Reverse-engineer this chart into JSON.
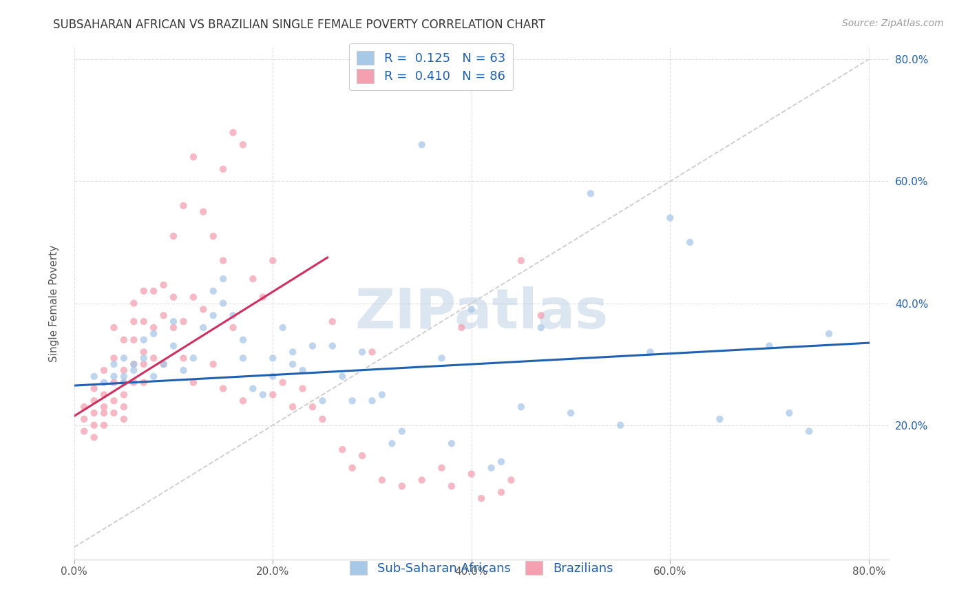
{
  "title": "SUBSAHARAN AFRICAN VS BRAZILIAN SINGLE FEMALE POVERTY CORRELATION CHART",
  "source": "Source: ZipAtlas.com",
  "ylabel": "Single Female Poverty",
  "watermark": "ZIPatlas",
  "blue_R": "0.125",
  "blue_N": 63,
  "pink_R": "0.410",
  "pink_N": 86,
  "legend_label_blue": "Sub-Saharan Africans",
  "legend_label_pink": "Brazilians",
  "blue_color": "#a8c8e8",
  "pink_color": "#f4a0b0",
  "blue_line_color": "#2060b0",
  "pink_line_color": "#d03060",
  "diagonal_color": "#cccccc",
  "xlim": [
    0.0,
    0.82
  ],
  "ylim": [
    -0.02,
    0.82
  ],
  "xticks": [
    0.0,
    0.2,
    0.4,
    0.6,
    0.8
  ],
  "yticks": [
    0.2,
    0.4,
    0.6,
    0.8
  ],
  "background_color": "#ffffff",
  "grid_color": "#e0e0e0",
  "title_fontsize": 12,
  "axis_label_fontsize": 11,
  "tick_fontsize": 11,
  "legend_fontsize": 13,
  "source_fontsize": 10,
  "blue_line_x": [
    0.0,
    0.8
  ],
  "blue_line_y": [
    0.265,
    0.335
  ],
  "pink_line_x": [
    0.0,
    0.255
  ],
  "pink_line_y": [
    0.215,
    0.475
  ],
  "blue_scatter_x": [
    0.02,
    0.03,
    0.04,
    0.04,
    0.05,
    0.05,
    0.05,
    0.06,
    0.06,
    0.07,
    0.07,
    0.08,
    0.08,
    0.09,
    0.1,
    0.1,
    0.11,
    0.12,
    0.13,
    0.14,
    0.14,
    0.15,
    0.15,
    0.16,
    0.17,
    0.17,
    0.18,
    0.19,
    0.2,
    0.2,
    0.21,
    0.22,
    0.22,
    0.23,
    0.24,
    0.25,
    0.26,
    0.27,
    0.28,
    0.29,
    0.3,
    0.31,
    0.32,
    0.33,
    0.35,
    0.37,
    0.38,
    0.4,
    0.42,
    0.43,
    0.45,
    0.47,
    0.5,
    0.52,
    0.55,
    0.58,
    0.6,
    0.62,
    0.65,
    0.7,
    0.72,
    0.74,
    0.76
  ],
  "blue_scatter_y": [
    0.28,
    0.27,
    0.3,
    0.28,
    0.28,
    0.31,
    0.27,
    0.3,
    0.29,
    0.34,
    0.31,
    0.35,
    0.28,
    0.3,
    0.33,
    0.37,
    0.29,
    0.31,
    0.36,
    0.38,
    0.42,
    0.44,
    0.4,
    0.38,
    0.34,
    0.31,
    0.26,
    0.25,
    0.31,
    0.28,
    0.36,
    0.3,
    0.32,
    0.29,
    0.33,
    0.24,
    0.33,
    0.28,
    0.24,
    0.32,
    0.24,
    0.25,
    0.17,
    0.19,
    0.66,
    0.31,
    0.17,
    0.39,
    0.13,
    0.14,
    0.23,
    0.36,
    0.22,
    0.58,
    0.2,
    0.32,
    0.54,
    0.5,
    0.21,
    0.33,
    0.22,
    0.19,
    0.35
  ],
  "pink_scatter_x": [
    0.01,
    0.01,
    0.01,
    0.02,
    0.02,
    0.02,
    0.02,
    0.02,
    0.03,
    0.03,
    0.03,
    0.03,
    0.03,
    0.04,
    0.04,
    0.04,
    0.04,
    0.04,
    0.05,
    0.05,
    0.05,
    0.05,
    0.05,
    0.05,
    0.06,
    0.06,
    0.06,
    0.06,
    0.06,
    0.07,
    0.07,
    0.07,
    0.07,
    0.07,
    0.08,
    0.08,
    0.08,
    0.09,
    0.09,
    0.09,
    0.1,
    0.1,
    0.1,
    0.11,
    0.11,
    0.11,
    0.12,
    0.12,
    0.12,
    0.13,
    0.13,
    0.14,
    0.14,
    0.15,
    0.15,
    0.15,
    0.16,
    0.16,
    0.17,
    0.17,
    0.18,
    0.19,
    0.2,
    0.2,
    0.21,
    0.22,
    0.23,
    0.24,
    0.25,
    0.26,
    0.27,
    0.28,
    0.29,
    0.3,
    0.31,
    0.33,
    0.35,
    0.37,
    0.38,
    0.39,
    0.4,
    0.41,
    0.43,
    0.44,
    0.45,
    0.47
  ],
  "pink_scatter_y": [
    0.23,
    0.21,
    0.19,
    0.26,
    0.24,
    0.22,
    0.2,
    0.18,
    0.29,
    0.25,
    0.23,
    0.22,
    0.2,
    0.31,
    0.36,
    0.27,
    0.24,
    0.22,
    0.34,
    0.29,
    0.27,
    0.25,
    0.23,
    0.21,
    0.4,
    0.37,
    0.34,
    0.3,
    0.27,
    0.42,
    0.37,
    0.32,
    0.3,
    0.27,
    0.42,
    0.36,
    0.31,
    0.43,
    0.38,
    0.3,
    0.51,
    0.41,
    0.36,
    0.56,
    0.37,
    0.31,
    0.64,
    0.41,
    0.27,
    0.55,
    0.39,
    0.51,
    0.3,
    0.62,
    0.47,
    0.26,
    0.68,
    0.36,
    0.66,
    0.24,
    0.44,
    0.41,
    0.47,
    0.25,
    0.27,
    0.23,
    0.26,
    0.23,
    0.21,
    0.37,
    0.16,
    0.13,
    0.15,
    0.32,
    0.11,
    0.1,
    0.11,
    0.13,
    0.1,
    0.36,
    0.12,
    0.08,
    0.09,
    0.11,
    0.47,
    0.38
  ]
}
